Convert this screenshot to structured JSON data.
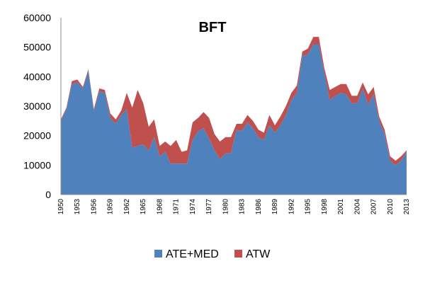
{
  "chart_data": {
    "type": "area",
    "title": "BFT",
    "xlabel": "",
    "ylabel": "",
    "stacked": true,
    "ylim": [
      0,
      60000
    ],
    "yticks": [
      0,
      10000,
      20000,
      30000,
      40000,
      50000,
      60000
    ],
    "ytick_labels": [
      "0",
      "10000",
      "20000",
      "30000",
      "40000",
      "50000",
      "60000"
    ],
    "x": [
      1950,
      1951,
      1952,
      1953,
      1954,
      1955,
      1956,
      1957,
      1958,
      1959,
      1960,
      1961,
      1962,
      1963,
      1964,
      1965,
      1966,
      1967,
      1968,
      1969,
      1970,
      1971,
      1972,
      1973,
      1974,
      1975,
      1976,
      1977,
      1978,
      1979,
      1980,
      1981,
      1982,
      1983,
      1984,
      1985,
      1986,
      1987,
      1988,
      1989,
      1990,
      1991,
      1992,
      1993,
      1994,
      1995,
      1996,
      1997,
      1998,
      1999,
      2000,
      2001,
      2002,
      2003,
      2004,
      2005,
      2006,
      2007,
      2008,
      2009,
      2010,
      2011,
      2012,
      2013
    ],
    "xtick_labels": [
      "1950",
      "1953",
      "1956",
      "1959",
      "1962",
      "1965",
      "1968",
      "1971",
      "1974",
      "1977",
      "1980",
      "1983",
      "1986",
      "1989",
      "1992",
      "1995",
      "1998",
      "2001",
      "2004",
      "2007",
      "2010",
      "2013"
    ],
    "series": [
      {
        "name": "ATE+MED",
        "color": "#4f81bd",
        "values": [
          25000,
          29000,
          37500,
          38000,
          36000,
          42000,
          28500,
          35000,
          34500,
          26000,
          24000,
          27000,
          29000,
          16000,
          16500,
          17000,
          15000,
          19500,
          13000,
          14500,
          10500,
          10500,
          10500,
          10500,
          18500,
          21500,
          22500,
          19000,
          15000,
          12000,
          14000,
          14000,
          22000,
          21500,
          24500,
          22500,
          19500,
          18500,
          23500,
          21000,
          23500,
          27000,
          32000,
          34500,
          47000,
          47500,
          51000,
          51000,
          41500,
          32000,
          33500,
          34500,
          34000,
          31000,
          31000,
          36000,
          30500,
          34000,
          25000,
          20500,
          11500,
          10000,
          11500,
          14500
        ]
      },
      {
        "name": "ATW",
        "color": "#c0504d",
        "values": [
          500,
          500,
          1000,
          1000,
          500,
          500,
          500,
          1000,
          1000,
          1500,
          1500,
          1500,
          5500,
          13500,
          19000,
          14000,
          8000,
          6000,
          3500,
          3500,
          6000,
          8000,
          4000,
          4500,
          6000,
          4500,
          5500,
          7000,
          5500,
          6000,
          5500,
          5500,
          2000,
          2500,
          2500,
          2500,
          2500,
          2500,
          3500,
          2500,
          3000,
          3000,
          2500,
          2500,
          1500,
          2000,
          2500,
          2500,
          1500,
          3500,
          3000,
          3000,
          3500,
          2500,
          2500,
          2000,
          3500,
          2500,
          1500,
          1500,
          1500,
          1500,
          1500,
          500
        ]
      }
    ],
    "legend": {
      "position": "bottom",
      "entries": [
        "ATE+MED",
        "ATW"
      ]
    },
    "grid": false
  }
}
